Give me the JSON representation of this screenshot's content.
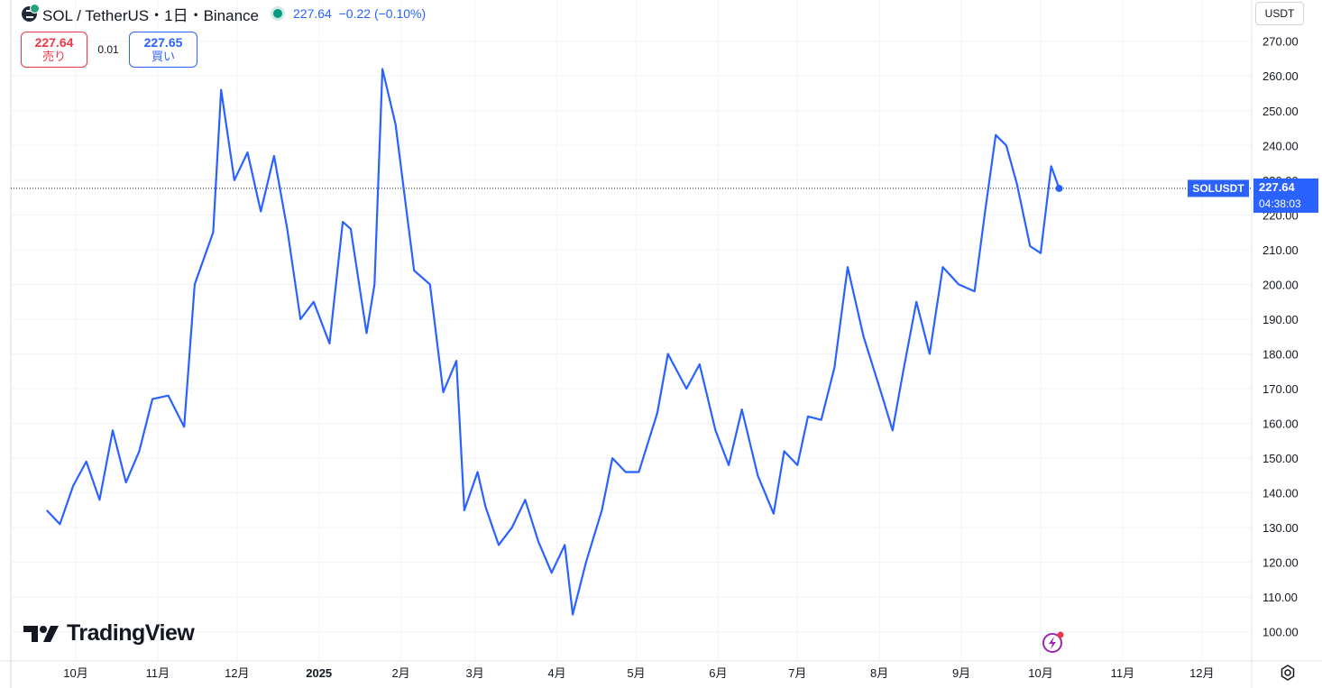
{
  "header": {
    "title": "SOL / TetherUS・1日・Binance",
    "last": "227.64",
    "change": "−0.22 (−0.10%)"
  },
  "trade": {
    "sell_price": "227.64",
    "sell_label": "売り",
    "spread": "0.01",
    "buy_price": "227.65",
    "buy_label": "買い"
  },
  "currency": "USDT",
  "price_label": {
    "symbol": "SOLUSDT",
    "price": "227.64",
    "countdown": "04:38:03"
  },
  "branding": {
    "logo_text": "TradingView"
  },
  "icons": {
    "symbol": "sol-coin-icon",
    "bolt": "lightning-icon",
    "settings": "gear-icon"
  },
  "colors": {
    "line": "#2962ff",
    "sell": "#f23645",
    "buy": "#2962ff",
    "grid": "#f0f3fa",
    "status": "#089981"
  },
  "chart_data": {
    "type": "line",
    "y_ticks": [
      "100.00",
      "110.00",
      "120.00",
      "130.00",
      "140.00",
      "150.00",
      "160.00",
      "170.00",
      "180.00",
      "190.00",
      "200.00",
      "210.00",
      "220.00",
      "230.00",
      "240.00",
      "250.00",
      "260.00",
      "270.00"
    ],
    "ylim": [
      95,
      272
    ],
    "x_labels": [
      "10月",
      "11月",
      "12月",
      "2025",
      "2月",
      "3月",
      "4月",
      "5月",
      "6月",
      "7月",
      "8月",
      "9月",
      "10月",
      "11月",
      "12月"
    ],
    "x_dates": [
      "2024-10-01",
      "2024-11-01",
      "2024-12-01",
      "2025-01-01",
      "2025-02-01",
      "2025-03-01",
      "2025-04-01",
      "2025-05-01",
      "2025-06-01",
      "2025-07-01",
      "2025-08-01",
      "2025-09-01",
      "2025-10-01",
      "2025-11-01",
      "2025-12-01"
    ],
    "grid": true,
    "series": [
      {
        "name": "SOLUSDT",
        "x": [
          "2024-09-20",
          "2024-09-25",
          "2024-09-30",
          "2024-10-05",
          "2024-10-10",
          "2024-10-15",
          "2024-10-20",
          "2024-10-25",
          "2024-10-30",
          "2024-11-05",
          "2024-11-11",
          "2024-11-15",
          "2024-11-22",
          "2024-11-25",
          "2024-11-30",
          "2024-12-05",
          "2024-12-10",
          "2024-12-15",
          "2024-12-20",
          "2024-12-25",
          "2024-12-30",
          "2025-01-05",
          "2025-01-10",
          "2025-01-13",
          "2025-01-19",
          "2025-01-22",
          "2025-01-25",
          "2025-01-30",
          "2025-02-03",
          "2025-02-06",
          "2025-02-12",
          "2025-02-17",
          "2025-02-22",
          "2025-02-25",
          "2025-03-02",
          "2025-03-05",
          "2025-03-10",
          "2025-03-15",
          "2025-03-20",
          "2025-03-25",
          "2025-03-30",
          "2025-04-04",
          "2025-04-07",
          "2025-04-12",
          "2025-04-18",
          "2025-04-22",
          "2025-04-27",
          "2025-05-02",
          "2025-05-09",
          "2025-05-13",
          "2025-05-20",
          "2025-05-25",
          "2025-05-31",
          "2025-06-05",
          "2025-06-10",
          "2025-06-16",
          "2025-06-22",
          "2025-06-26",
          "2025-07-01",
          "2025-07-05",
          "2025-07-10",
          "2025-07-15",
          "2025-07-20",
          "2025-07-26",
          "2025-08-02",
          "2025-08-06",
          "2025-08-10",
          "2025-08-15",
          "2025-08-20",
          "2025-08-25",
          "2025-08-31",
          "2025-09-06",
          "2025-09-10",
          "2025-09-14",
          "2025-09-18",
          "2025-09-22",
          "2025-09-27",
          "2025-10-01",
          "2025-10-05",
          "2025-10-08"
        ],
        "values": [
          135,
          131,
          142,
          149,
          138,
          158,
          143,
          152,
          167,
          168,
          159,
          200,
          215,
          256,
          230,
          238,
          221,
          237,
          216,
          190,
          195,
          183,
          218,
          216,
          186,
          200,
          262,
          246,
          222,
          204,
          200,
          169,
          178,
          135,
          146,
          136,
          125,
          130,
          138,
          126,
          117,
          125,
          105,
          120,
          135,
          150,
          146,
          146,
          163,
          180,
          170,
          177,
          158,
          148,
          164,
          145,
          134,
          152,
          148,
          162,
          161,
          176,
          205,
          185,
          168,
          158,
          175,
          195,
          180,
          205,
          200,
          198,
          221,
          243,
          240,
          229,
          211,
          209,
          234,
          227.64
        ]
      }
    ]
  }
}
